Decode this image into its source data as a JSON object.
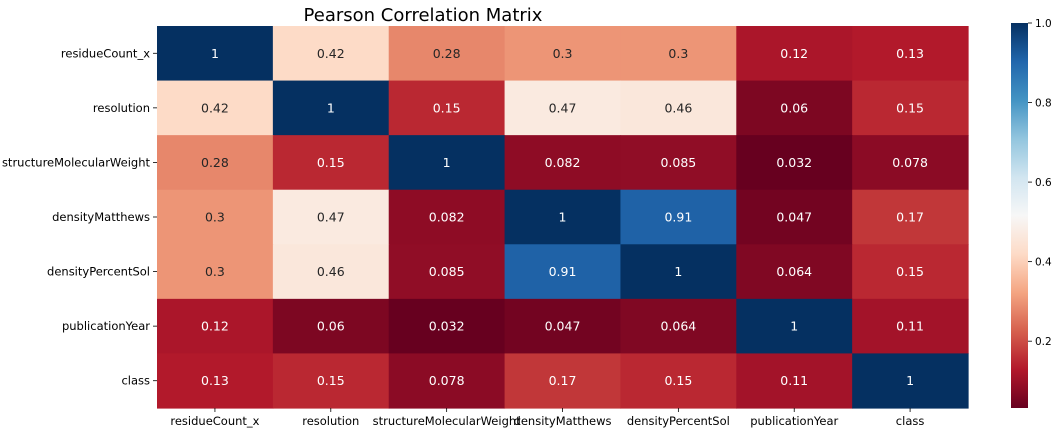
{
  "chart_data": {
    "type": "heatmap",
    "title": "Pearson Correlation Matrix",
    "rows": [
      "residueCount_x",
      "resolution",
      "structureMolecularWeight",
      "densityMatthews",
      "densityPercentSol",
      "publicationYear",
      "class"
    ],
    "columns": [
      "residueCount_x",
      "resolution",
      "structureMolecularWeight",
      "densityMatthews",
      "densityPercentSol",
      "publicationYear",
      "class"
    ],
    "values": [
      [
        1,
        0.42,
        0.28,
        0.3,
        0.3,
        0.12,
        0.13
      ],
      [
        0.42,
        1,
        0.15,
        0.47,
        0.46,
        0.06,
        0.15
      ],
      [
        0.28,
        0.15,
        1,
        0.082,
        0.085,
        0.032,
        0.078
      ],
      [
        0.3,
        0.47,
        0.082,
        1,
        0.91,
        0.047,
        0.17
      ],
      [
        0.3,
        0.46,
        0.085,
        0.91,
        1,
        0.064,
        0.15
      ],
      [
        0.12,
        0.06,
        0.032,
        0.047,
        0.064,
        1,
        0.11
      ],
      [
        0.13,
        0.15,
        0.078,
        0.17,
        0.15,
        0.11,
        1
      ]
    ],
    "colormap": "RdBu",
    "vmin": 0.032,
    "vmax": 1.0,
    "colorbar_ticks": [
      "0.2",
      "0.4",
      "0.6",
      "0.8",
      "1.0"
    ],
    "annotations": true,
    "grid": false
  }
}
